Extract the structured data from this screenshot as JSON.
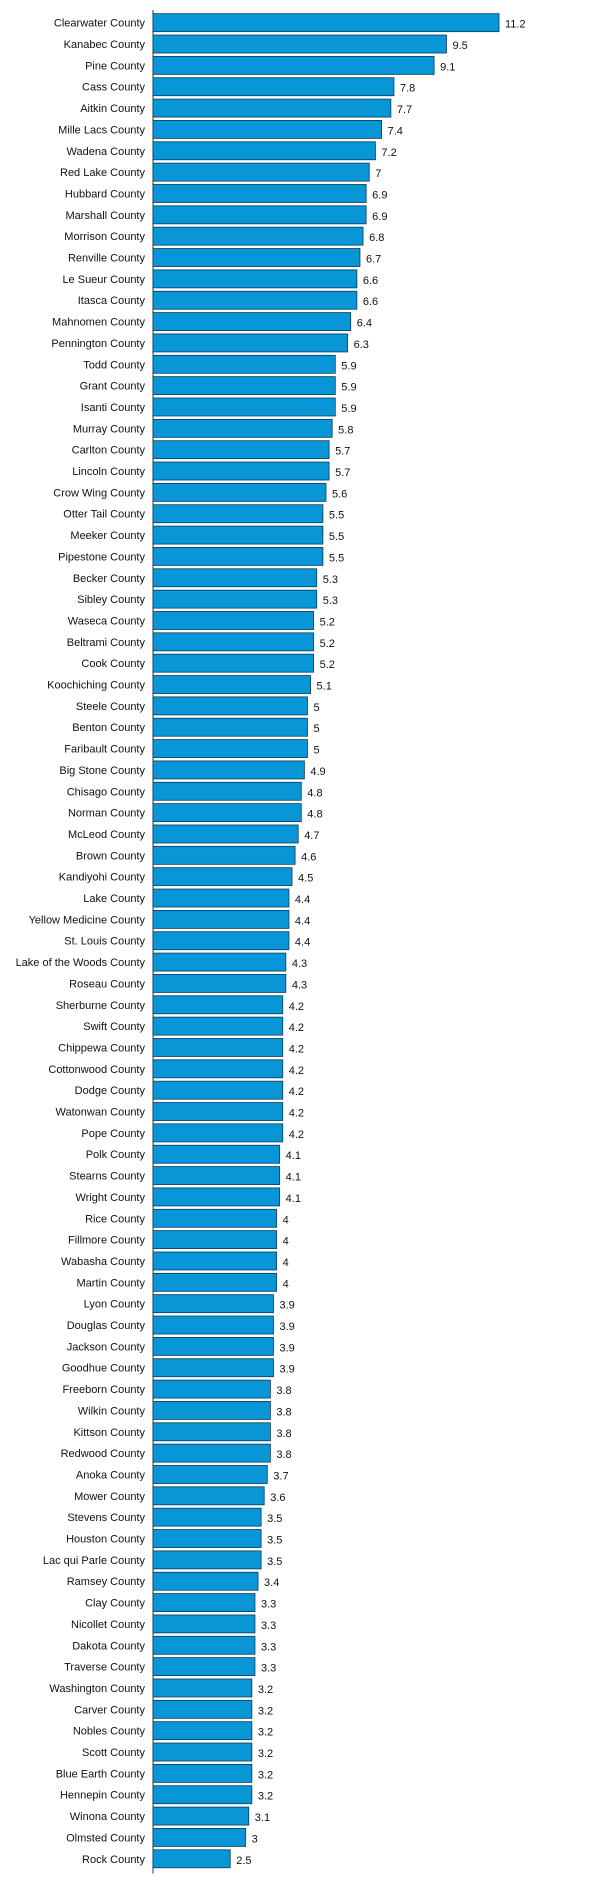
{
  "colors": {
    "bar": "#0996d6",
    "bar_stroke": "#0a3a5c",
    "text": "#111111",
    "axis": "#333333",
    "background": "#ffffff"
  },
  "chart_data": {
    "type": "bar",
    "orientation": "horizontal",
    "title": "",
    "xlabel": "",
    "ylabel": "",
    "xlim": [
      0,
      11.2
    ],
    "grid": false,
    "legend": "none",
    "data_labels": true,
    "categories": [
      "Clearwater County",
      "Kanabec County",
      "Pine County",
      "Cass County",
      "Aitkin County",
      "Mille Lacs County",
      "Wadena County",
      "Red Lake County",
      "Hubbard County",
      "Marshall County",
      "Morrison County",
      "Renville County",
      "Le Sueur County",
      "Itasca County",
      "Mahnomen County",
      "Pennington County",
      "Todd County",
      "Grant County",
      "Isanti County",
      "Murray County",
      "Carlton County",
      "Lincoln County",
      "Crow Wing County",
      "Otter Tail County",
      "Meeker County",
      "Pipestone County",
      "Becker County",
      "Sibley County",
      "Waseca County",
      "Beltrami County",
      "Cook County",
      "Koochiching County",
      "Steele County",
      "Benton County",
      "Faribault County",
      "Big Stone County",
      "Chisago County",
      "Norman County",
      "McLeod County",
      "Brown County",
      "Kandiyohi County",
      "Lake County",
      "Yellow Medicine County",
      "St. Louis County",
      "Lake of the Woods County",
      "Roseau County",
      "Sherburne County",
      "Swift County",
      "Chippewa County",
      "Cottonwood County",
      "Dodge County",
      "Watonwan County",
      "Pope County",
      "Polk County",
      "Stearns County",
      "Wright County",
      "Rice County",
      "Fillmore County",
      "Wabasha County",
      "Martin County",
      "Lyon County",
      "Douglas County",
      "Jackson County",
      "Goodhue County",
      "Freeborn County",
      "Wilkin County",
      "Kittson County",
      "Redwood County",
      "Anoka County",
      "Mower County",
      "Stevens County",
      "Houston County",
      "Lac qui Parle County",
      "Ramsey County",
      "Clay County",
      "Nicollet County",
      "Dakota County",
      "Traverse County",
      "Washington County",
      "Carver County",
      "Nobles County",
      "Scott County",
      "Blue Earth County",
      "Hennepin County",
      "Winona County",
      "Olmsted County",
      "Rock County"
    ],
    "values": [
      11.2,
      9.5,
      9.1,
      7.8,
      7.7,
      7.4,
      7.2,
      7,
      6.9,
      6.9,
      6.8,
      6.7,
      6.6,
      6.6,
      6.4,
      6.3,
      5.9,
      5.9,
      5.9,
      5.8,
      5.7,
      5.7,
      5.6,
      5.5,
      5.5,
      5.5,
      5.3,
      5.3,
      5.2,
      5.2,
      5.2,
      5.1,
      5,
      5,
      5,
      4.9,
      4.8,
      4.8,
      4.7,
      4.6,
      4.5,
      4.4,
      4.4,
      4.4,
      4.3,
      4.3,
      4.2,
      4.2,
      4.2,
      4.2,
      4.2,
      4.2,
      4.2,
      4.1,
      4.1,
      4.1,
      4,
      4,
      4,
      4,
      3.9,
      3.9,
      3.9,
      3.9,
      3.8,
      3.8,
      3.8,
      3.8,
      3.7,
      3.6,
      3.5,
      3.5,
      3.5,
      3.4,
      3.3,
      3.3,
      3.3,
      3.3,
      3.2,
      3.2,
      3.2,
      3.2,
      3.2,
      3.2,
      3.1,
      3,
      2.5
    ]
  }
}
